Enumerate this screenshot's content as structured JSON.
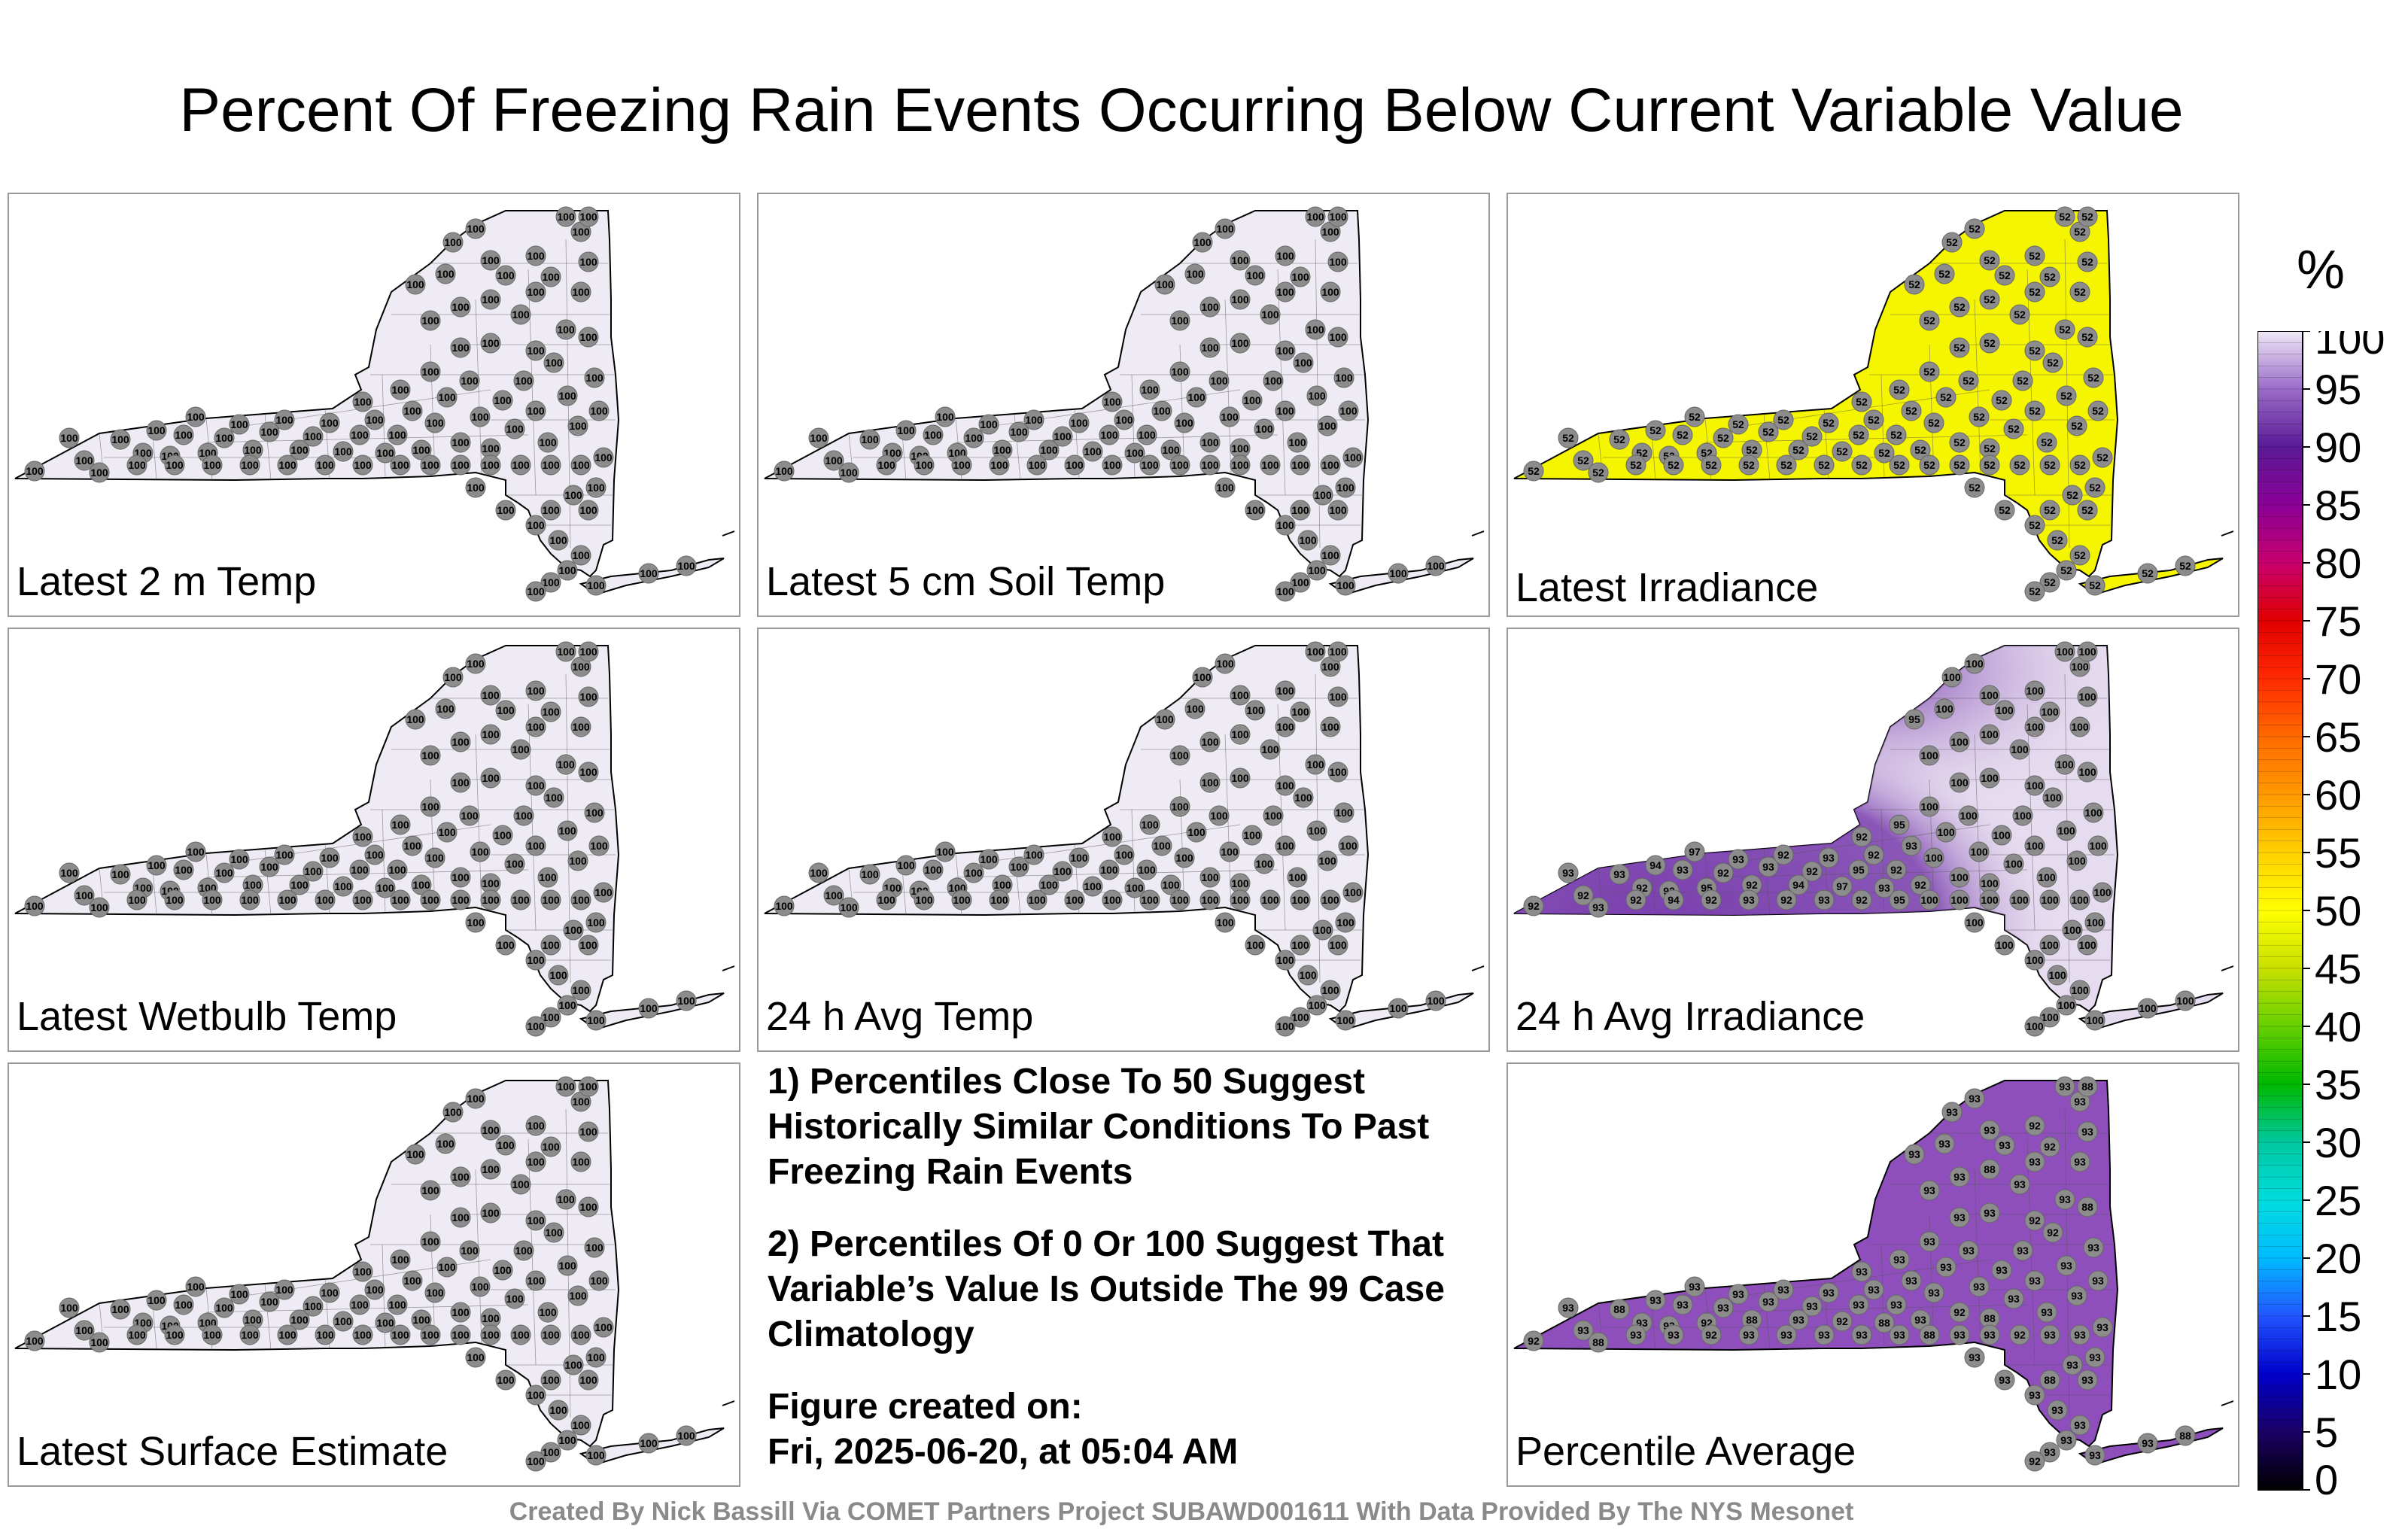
{
  "title": "Percent Of Freezing Rain Events Occurring Below Current Variable Value",
  "panels": [
    {
      "label": "Latest 2 m Temp",
      "fill": "#efebf4",
      "value": "100",
      "style": "uniform"
    },
    {
      "label": "Latest 5 cm Soil Temp",
      "fill": "#efebf4",
      "value": "100",
      "style": "uniform"
    },
    {
      "label": "Latest Irradiance",
      "fill": "#f5f500",
      "value": "52",
      "style": "uniform"
    },
    {
      "label": "Latest Wetbulb Temp",
      "fill": "#efebf4",
      "value": "100",
      "style": "uniform"
    },
    {
      "label": "24 h Avg Temp",
      "fill": "#efebf4",
      "value": "100",
      "style": "uniform"
    },
    {
      "label": "24 h Avg Irradiance",
      "fill": "#e6dcef",
      "value": "100",
      "style": "gradient",
      "west_fill": "#7a3fae",
      "west_values": [
        "92",
        "93",
        "92",
        "93",
        "92",
        "94",
        "92",
        "93",
        "97",
        "95"
      ]
    },
    {
      "label": "Latest Surface Estimate",
      "fill": "#efebf4",
      "value": "100",
      "style": "uniform"
    },
    {
      "label": "Percentile Average",
      "fill": "#8e4fbd",
      "value": "93",
      "style": "mixed",
      "alt_values": [
        "92",
        "93",
        "92",
        "88",
        "81",
        "92",
        "93",
        "93",
        "100"
      ]
    }
  ],
  "notes": [
    "1) Percentiles Close To 50 Suggest Historically Similar Conditions To Past Freezing Rain Events",
    "2) Percentiles Of 0 Or 100 Suggest That Variable’s Value Is Outside The 99 Case Climatology"
  ],
  "figure_created_label": "Figure created on:",
  "figure_created_date": "Fri, 2025-06-20, at 05:04 AM",
  "credit": "Created By Nick Bassill Via COMET Partners Project SUBAWD001611 With Data Provided By The NYS Mesonet",
  "colorbar": {
    "unit": "%",
    "ticks": [
      "0",
      "5",
      "10",
      "15",
      "20",
      "25",
      "30",
      "35",
      "40",
      "45",
      "50",
      "55",
      "60",
      "65",
      "70",
      "75",
      "80",
      "85",
      "90",
      "95",
      "100"
    ],
    "stops": [
      "#000000",
      "#1a0066",
      "#0000cc",
      "#2255ff",
      "#00bbff",
      "#00dddd",
      "#00c8a0",
      "#00b800",
      "#66d000",
      "#c8e000",
      "#ffff00",
      "#ffd000",
      "#ff9900",
      "#ff6a00",
      "#ff2a00",
      "#e00000",
      "#c8006e",
      "#8a0096",
      "#5a1a96",
      "#9a6cc8",
      "#efe8f6"
    ]
  },
  "icons": {
    "station": "station-marker-icon"
  }
}
